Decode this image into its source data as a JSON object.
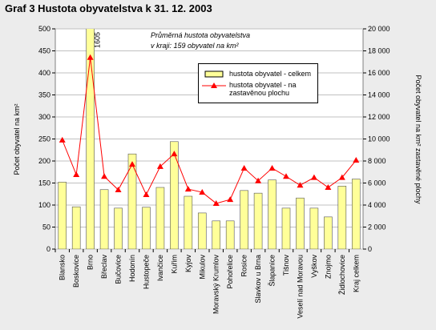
{
  "chart_data": {
    "type": "bar_line",
    "title": "Graf 3  Hustota obyvatelstva k 31. 12. 2003",
    "annotations": [
      "Průměrná hustota obyvatelstva",
      "v kraji: 159 obyvatel na km²"
    ],
    "y_label": "Počet obyvatel na km²",
    "y2_label": "Počet obyvatel na km² zastavěné plochy",
    "categories": [
      "Blansko",
      "Boskovice",
      "Brno",
      "Břeclav",
      "Bučovice",
      "Hodonín",
      "Hustopeče",
      "Ivančice",
      "Kuřim",
      "Kyjov",
      "Mikulov",
      "Moravský Krumlov",
      "Pohořelice",
      "Rosice",
      "Slavkov u Brna",
      "Šlapanice",
      "Tišnov",
      "Veselí nad Moravou",
      "Vyškov",
      "Znojmo",
      "Židlochovice",
      "Kraj celkem"
    ],
    "series": [
      {
        "name": "hustota obyvatel - celkem",
        "kind": "bar",
        "color": "#ffff99",
        "values": [
          152,
          96,
          1605,
          135,
          93,
          216,
          95,
          140,
          244,
          120,
          82,
          64,
          64,
          133,
          127,
          157,
          93,
          116,
          93,
          73,
          143,
          159
        ],
        "value_labels": [
          null,
          null,
          "1605",
          null,
          null,
          null,
          null,
          null,
          null,
          null,
          null,
          null,
          null,
          null,
          null,
          null,
          null,
          null,
          null,
          null,
          null,
          null
        ]
      },
      {
        "name": "hustota obyvatel - na zastavěnou plochu",
        "kind": "line",
        "axis": "y2",
        "color": "#ff0000",
        "values": [
          9900,
          6760,
          17400,
          6600,
          5380,
          7700,
          4950,
          7500,
          8650,
          5450,
          5160,
          4150,
          4500,
          7350,
          6200,
          7350,
          6600,
          5800,
          6500,
          5600,
          6500,
          8070
        ]
      }
    ],
    "ylim": [
      0,
      500
    ],
    "yticks": [
      0,
      50,
      100,
      150,
      200,
      250,
      300,
      350,
      400,
      450,
      500
    ],
    "y2lim": [
      0,
      20000
    ],
    "y2ticks": [
      0,
      {
        "value": 2000,
        "label": "2 000"
      },
      {
        "value": 4000,
        "label": "4 000"
      },
      {
        "value": 6000,
        "label": "6 000"
      },
      {
        "value": 8000,
        "label": "8 000"
      },
      {
        "value": 10000,
        "label": "10 000"
      },
      {
        "value": 12000,
        "label": "12 000"
      },
      {
        "value": 14000,
        "label": "14 000"
      },
      {
        "value": 16000,
        "label": "16 000"
      },
      {
        "value": 18000,
        "label": "18 000"
      },
      {
        "value": 20000,
        "label": "20 000"
      }
    ],
    "grid": true
  }
}
